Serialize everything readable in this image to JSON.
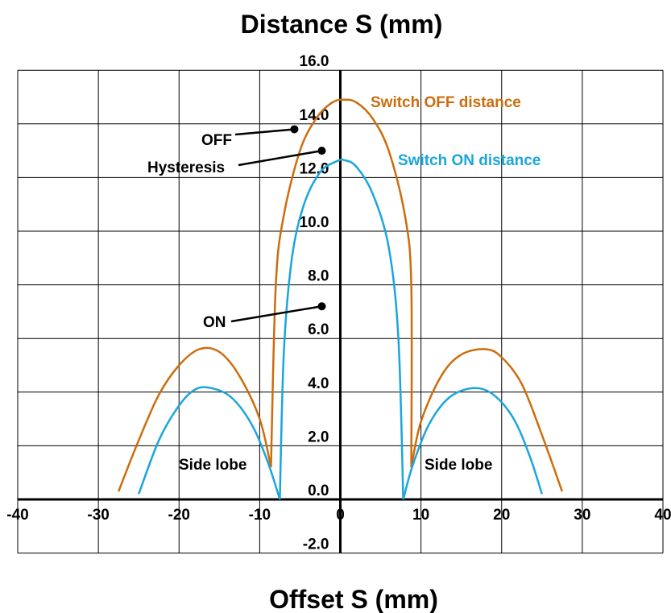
{
  "chart_data": {
    "type": "line",
    "title": "Distance S (mm)",
    "xlabel": "Offset S (mm)",
    "ylabel": "",
    "xlim": [
      -40,
      40
    ],
    "ylim": [
      -2.0,
      16.0
    ],
    "x_ticks": [
      -40,
      -30,
      -20,
      -10,
      0,
      10,
      20,
      30,
      40
    ],
    "y_ticks": [
      "-2.0",
      "0.0",
      "2.0",
      "4.0",
      "6.0",
      "8.0",
      "10.0",
      "12.0",
      "14.0",
      "16.0"
    ],
    "grid": true,
    "series": [
      {
        "name": "Switch OFF distance",
        "color": "#cc6d0c",
        "segments": [
          [
            [
              -27.5,
              0.3
            ],
            [
              -25,
              2.2
            ],
            [
              -22.5,
              3.9
            ],
            [
              -20,
              5.0
            ],
            [
              -17.5,
              5.6
            ],
            [
              -15,
              5.5
            ],
            [
              -12.5,
              4.6
            ],
            [
              -10,
              3.0
            ],
            [
              -8.6,
              1.2
            ]
          ],
          [
            [
              -8.6,
              1.2
            ],
            [
              -8,
              8.0
            ],
            [
              -7,
              10.6
            ],
            [
              -5,
              13.0
            ],
            [
              -3,
              14.2
            ],
            [
              -1,
              14.8
            ],
            [
              0.5,
              14.9
            ],
            [
              2,
              14.8
            ],
            [
              4,
              14.2
            ],
            [
              6,
              13.0
            ],
            [
              8,
              10.6
            ],
            [
              8.8,
              8.0
            ],
            [
              8.8,
              1.2
            ]
          ],
          [
            [
              8.8,
              1.2
            ],
            [
              10,
              2.9
            ],
            [
              12.5,
              4.6
            ],
            [
              15,
              5.4
            ],
            [
              18,
              5.6
            ],
            [
              20,
              5.3
            ],
            [
              22.5,
              4.3
            ],
            [
              25,
              2.4
            ],
            [
              27.5,
              0.3
            ]
          ]
        ]
      },
      {
        "name": "Switch ON distance",
        "color": "#1aa6dc",
        "segments": [
          [
            [
              -25,
              0.2
            ],
            [
              -22.5,
              2.2
            ],
            [
              -20,
              3.5
            ],
            [
              -18,
              4.1
            ],
            [
              -16,
              4.15
            ],
            [
              -13.5,
              3.8
            ],
            [
              -11,
              2.8
            ],
            [
              -9,
              1.4
            ],
            [
              -7.5,
              0
            ]
          ],
          [
            [
              -7.5,
              0
            ],
            [
              -7,
              5.5
            ],
            [
              -6,
              9.0
            ],
            [
              -4.5,
              11.0
            ],
            [
              -2.5,
              12.2
            ],
            [
              -0.5,
              12.6
            ],
            [
              0.5,
              12.65
            ],
            [
              2,
              12.4
            ],
            [
              4,
              11.4
            ],
            [
              6,
              9.4
            ],
            [
              7.2,
              6.0
            ],
            [
              7.8,
              0
            ]
          ],
          [
            [
              7.8,
              0
            ],
            [
              9,
              1.3
            ],
            [
              11,
              2.8
            ],
            [
              13.5,
              3.8
            ],
            [
              16.5,
              4.15
            ],
            [
              19,
              3.9
            ],
            [
              21.5,
              3.0
            ],
            [
              23.5,
              1.6
            ],
            [
              25,
              0.2
            ]
          ]
        ]
      }
    ],
    "annotations": [
      {
        "text": "OFF",
        "point": [
          -5.7,
          13.8
        ]
      },
      {
        "text": "Hysteresis",
        "point": [
          -2.3,
          13.0
        ]
      },
      {
        "text": "ON",
        "point": [
          -2.3,
          7.2
        ]
      },
      {
        "text": "Side lobe",
        "point": [
          -19,
          0.8
        ]
      },
      {
        "text": "Side lobe",
        "point": [
          15.5,
          0.8
        ]
      }
    ]
  }
}
